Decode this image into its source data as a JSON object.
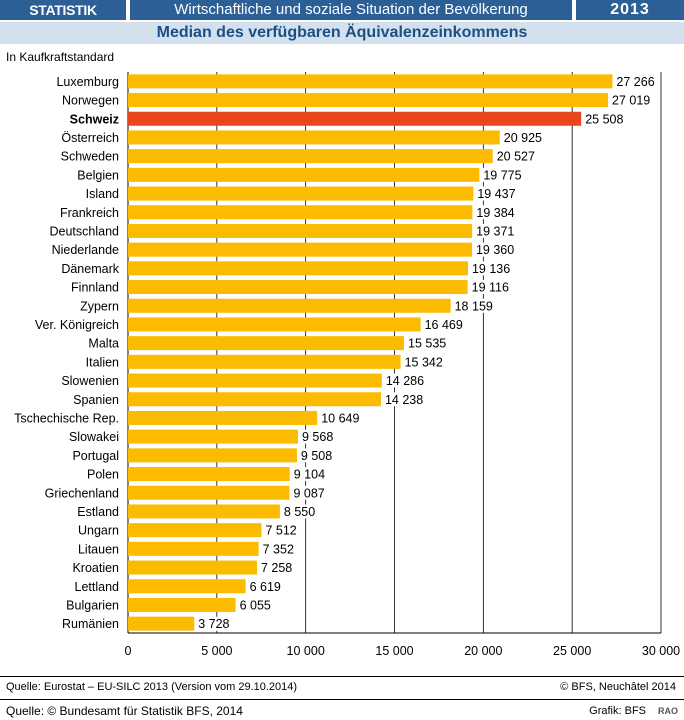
{
  "header": {
    "brand": "STATISTIK SCHWEIZ",
    "title": "Wirtschaftliche und soziale Situation der Bevölkerung",
    "year": "2013",
    "subtitle": "Median des verfügbaren Äquivalenzeinkommens"
  },
  "footer": {
    "source": "Quelle: Eurostat – EU-SILC 2013 (Version vom 29.10.2014)",
    "copyright_right": "© BFS, Neuchâtel 2014",
    "copyright": "Quelle: © Bundesamt für Statistik BFS, 2014",
    "grafik": "Grafik: BFS",
    "code": "RAO"
  },
  "colors": {
    "bar": "#fbbb00",
    "highlight": "#e8461c",
    "header_bg": "#2b5f95",
    "subtitle_bg": "#d3e1ee"
  },
  "chart_data": {
    "type": "bar",
    "orientation": "horizontal",
    "unit_label": "In Kaufkraftstandard",
    "categories": [
      "Luxemburg",
      "Norwegen",
      "Schweiz",
      "Österreich",
      "Schweden",
      "Belgien",
      "Island",
      "Frankreich",
      "Deutschland",
      "Niederlande",
      "Dänemark",
      "Finnland",
      "Zypern",
      "Ver. Königreich",
      "Malta",
      "Italien",
      "Slowenien",
      "Spanien",
      "Tschechische Rep.",
      "Slowakei",
      "Portugal",
      "Polen",
      "Griechenland",
      "Estland",
      "Ungarn",
      "Litauen",
      "Kroatien",
      "Lettland",
      "Bulgarien",
      "Rumänien"
    ],
    "values": [
      27266,
      27019,
      25508,
      20925,
      20527,
      19775,
      19437,
      19384,
      19371,
      19360,
      19136,
      19116,
      18159,
      16469,
      15535,
      15342,
      14286,
      14238,
      10649,
      9568,
      9508,
      9104,
      9087,
      8550,
      7512,
      7352,
      7258,
      6619,
      6055,
      3728
    ],
    "value_labels": [
      "27 266",
      "27 019",
      "25 508",
      "20 925",
      "20 527",
      "19 775",
      "19 437",
      "19 384",
      "19 371",
      "19 360",
      "19 136",
      "19 116",
      "18 159",
      "16 469",
      "15 535",
      "15 342",
      "14 286",
      "14 238",
      "10 649",
      "9 568",
      "9 508",
      "9 104",
      "9 087",
      "8 550",
      "7 512",
      "7 352",
      "7 258",
      "6 619",
      "6 055",
      "3 728"
    ],
    "highlight": "Schweiz",
    "xlim": [
      0,
      30000
    ],
    "xticks": [
      0,
      5000,
      10000,
      15000,
      20000,
      25000,
      30000
    ],
    "xtick_labels": [
      "0",
      "5 000",
      "10 000",
      "15 000",
      "20 000",
      "25 000",
      "30 000"
    ],
    "grid": true
  }
}
